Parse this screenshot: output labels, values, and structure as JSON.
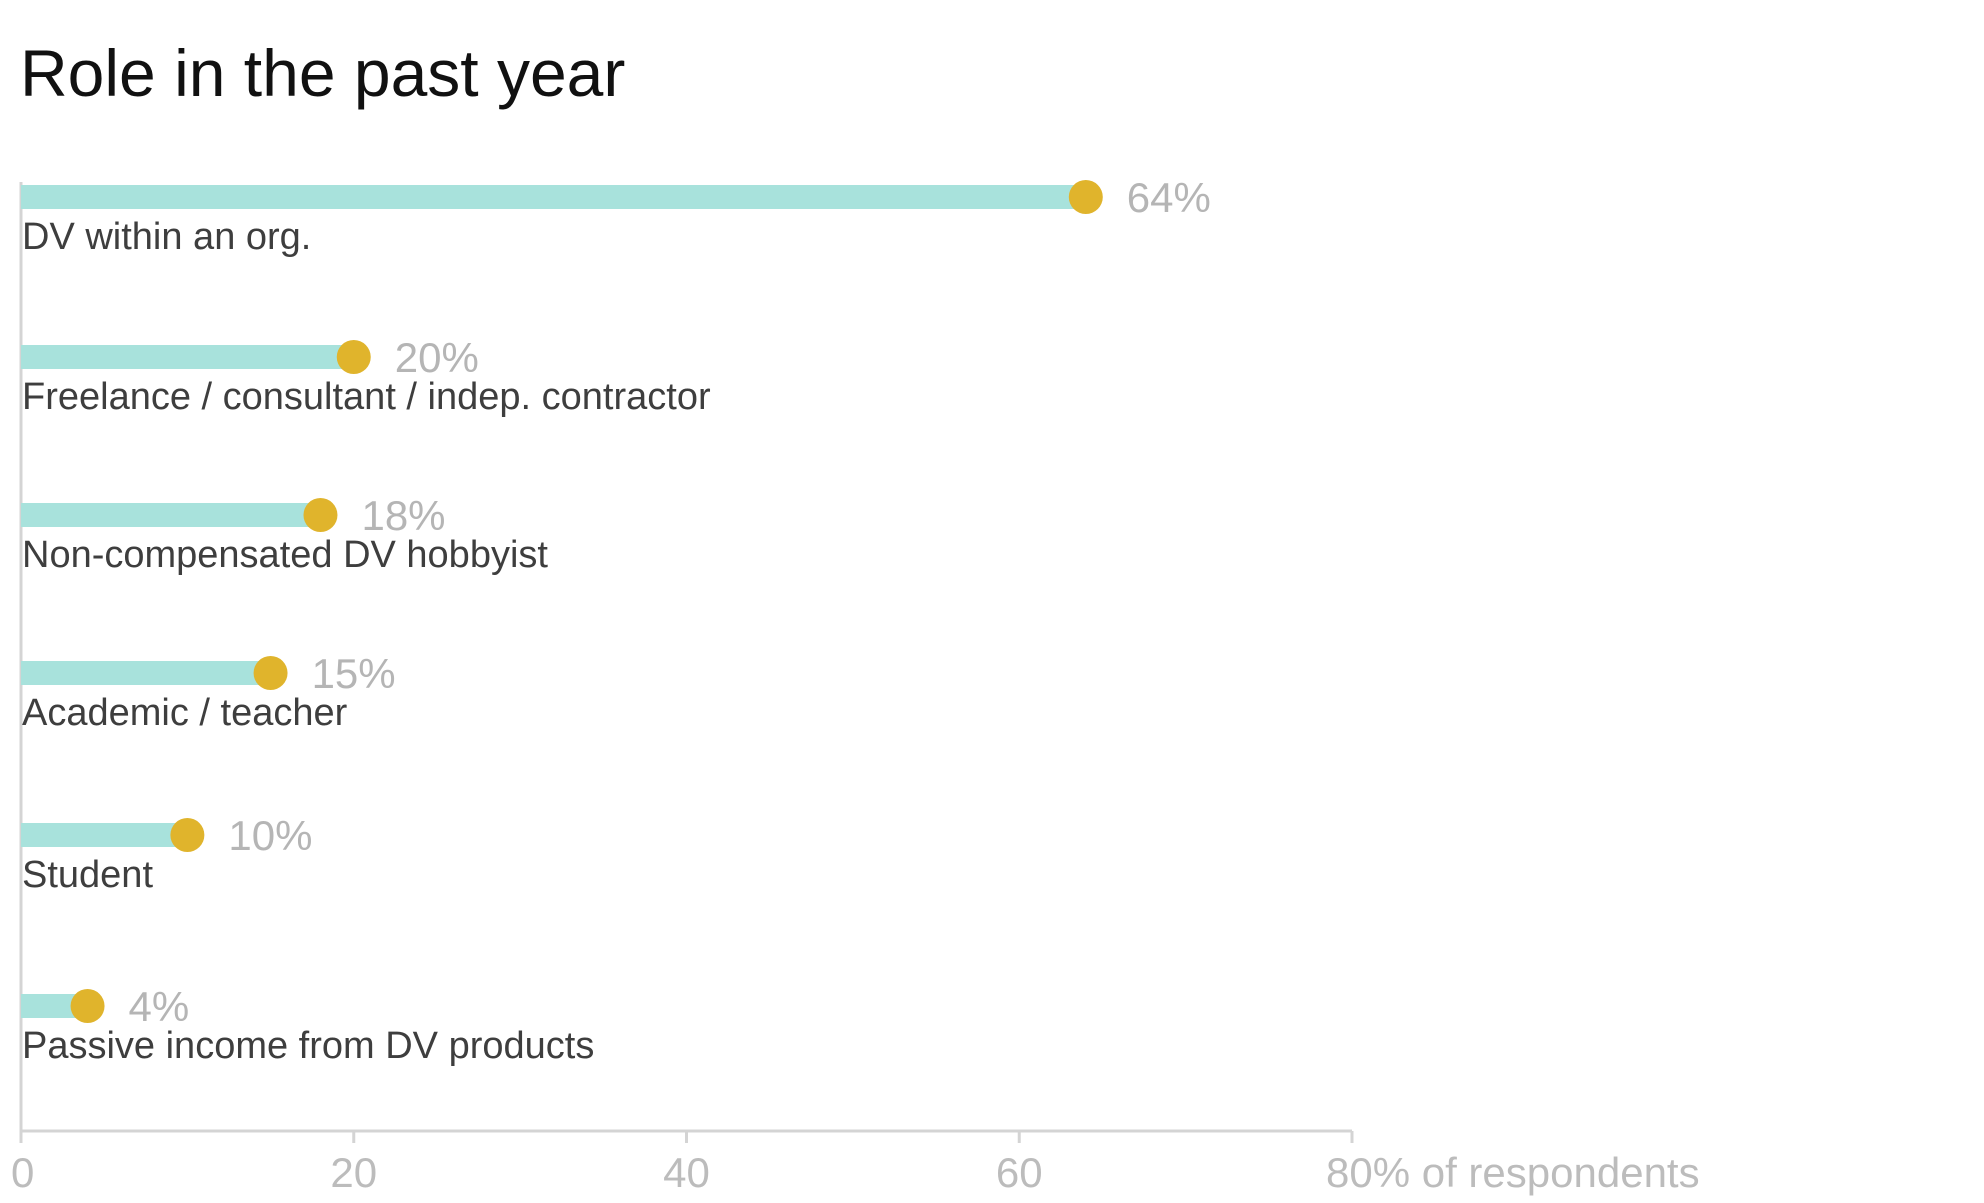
{
  "chart_data": {
    "type": "bar",
    "title": "Role in the past year",
    "categories": [
      "DV within an org.",
      "Freelance / consultant / indep. contractor",
      "Non-compensated DV hobbyist",
      "Academic / teacher",
      "Student",
      "Passive income from DV products"
    ],
    "values": [
      64,
      20,
      18,
      15,
      10,
      4
    ],
    "value_labels": [
      "64%",
      "20%",
      "18%",
      "15%",
      "10%",
      "4%"
    ],
    "xlim": [
      0,
      80
    ],
    "x_ticks": [
      "0",
      "20",
      "40",
      "60",
      "80% of respondents"
    ],
    "orientation": "horizontal",
    "grid": false,
    "legend": "none",
    "colors": {
      "bar": "#a8e2dc",
      "dot": "#e0b42c",
      "axis": "#d4d4d4"
    }
  }
}
